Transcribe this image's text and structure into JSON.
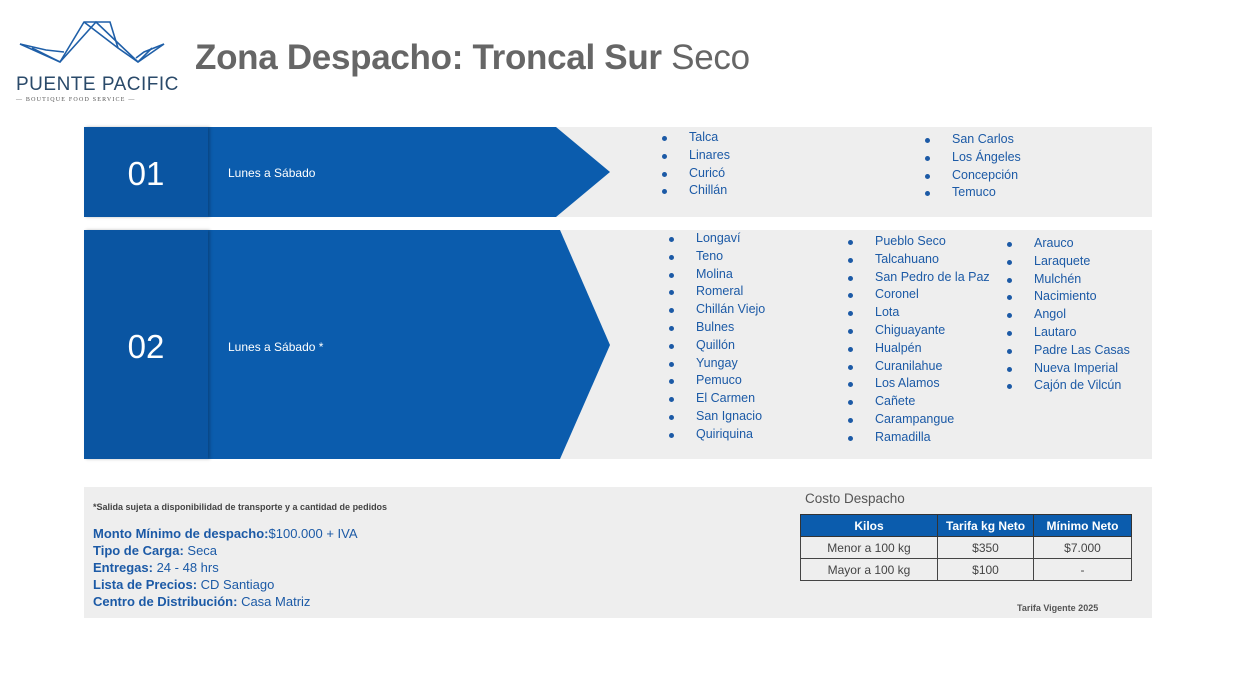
{
  "logo": {
    "name": "PUENTE PACIFIC",
    "tagline": "BOUTIQUE FOOD SERVICE"
  },
  "header": {
    "title_bold": "Zona Despacho: Troncal Sur",
    "title_light": "Seco"
  },
  "zones": [
    {
      "number": "01",
      "days": "Lunes a Sábado",
      "columns": [
        [
          "Talca",
          "Linares",
          "Curicó",
          "Chillán"
        ],
        [
          "San Carlos",
          "Los Ángeles",
          "Concepción",
          "Temuco"
        ]
      ]
    },
    {
      "number": "02",
      "days": "Lunes a Sábado *",
      "columns": [
        [
          "Longaví",
          "Teno",
          "Molina",
          "Romeral",
          "Chillán Viejo",
          "Bulnes",
          "Quillón",
          "Yungay",
          "Pemuco",
          "El Carmen",
          "San Ignacio",
          "Quiriquina"
        ],
        [
          "Pueblo Seco",
          "Talcahuano",
          "San Pedro de la Paz",
          "Coronel",
          "Lota",
          "Chiguayante",
          "Hualpén",
          "Curanilahue",
          "Los Alamos",
          "Cañete",
          "Carampangue",
          "Ramadilla"
        ],
        [
          "Arauco",
          "Laraquete",
          "Mulchén",
          "Nacimiento",
          "Angol",
          "Lautaro",
          "Padre Las Casas",
          "Nueva Imperial",
          "Cajón de Vilcún"
        ]
      ]
    }
  ],
  "footer": {
    "note": "*Salida sujeta a disponibilidad de transporte y a cantidad de pedidos",
    "info": [
      {
        "label": "Monto Mínimo de despacho:",
        "value": "$100.000 + IVA"
      },
      {
        "label": "Tipo de Carga:",
        "value": " Seca"
      },
      {
        "label": "Entregas:",
        "value": " 24 - 48 hrs"
      },
      {
        "label": "Lista de Precios:",
        "value": " CD Santiago"
      },
      {
        "label": "Centro de Distribución:",
        "value": " Casa Matriz"
      }
    ],
    "cost_title": "Costo Despacho",
    "table": {
      "headers": [
        "Kilos",
        "Tarifa kg Neto",
        "Mínimo Neto"
      ],
      "rows": [
        [
          "Menor a 100 kg",
          "$350",
          "$7.000"
        ],
        [
          "Mayor a 100 kg",
          "$100",
          "-"
        ]
      ]
    },
    "validity": "Tarifa Vigente 2025"
  },
  "colors": {
    "brand": "#0b5cad",
    "text_blue": "#1c5aa6",
    "band": "#eeeeee"
  }
}
